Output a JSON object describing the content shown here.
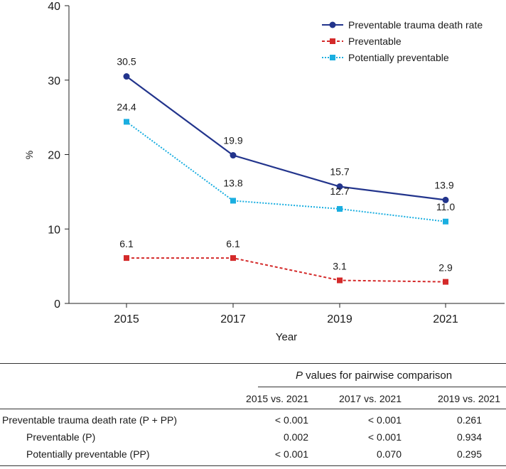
{
  "chart_data": {
    "type": "line",
    "xlabel": "Year",
    "ylabel": "%",
    "ylim": [
      0,
      40
    ],
    "yticks": [
      0,
      10,
      20,
      30,
      40
    ],
    "categories": [
      "2015",
      "2017",
      "2019",
      "2021"
    ],
    "legend_position": "top-right",
    "series": [
      {
        "name": "Preventable trauma death rate",
        "values": [
          30.5,
          19.9,
          15.7,
          13.9
        ],
        "labels": [
          "30.5",
          "19.9",
          "15.7",
          "13.9"
        ],
        "color": "#22348c",
        "line": "solid",
        "marker": "circle"
      },
      {
        "name": "Preventable",
        "values": [
          6.1,
          6.1,
          3.1,
          2.9
        ],
        "labels": [
          "6.1",
          "6.1",
          "3.1",
          "2.9"
        ],
        "color": "#d42a2a",
        "line": "dashed",
        "marker": "square"
      },
      {
        "name": "Potentially preventable",
        "values": [
          24.4,
          13.8,
          12.7,
          11.0
        ],
        "labels": [
          "24.4",
          "13.8",
          "12.7",
          "11.0"
        ],
        "color": "#1aaee0",
        "line": "dotted",
        "marker": "square"
      }
    ]
  },
  "table": {
    "title_italic": "P",
    "title_rest": " values for pairwise comparison",
    "headers": [
      "2015 vs. 2021",
      "2017 vs. 2021",
      "2019 vs. 2021"
    ],
    "rows": [
      {
        "label": "Preventable trauma death rate (P + PP)",
        "values": [
          "< 0.001",
          "< 0.001",
          "0.261"
        ]
      },
      {
        "label": "Preventable (P)",
        "values": [
          "0.002",
          "< 0.001",
          "0.934"
        ]
      },
      {
        "label": "Potentially preventable (PP)",
        "values": [
          "< 0.001",
          "0.070",
          "0.295"
        ]
      }
    ]
  }
}
